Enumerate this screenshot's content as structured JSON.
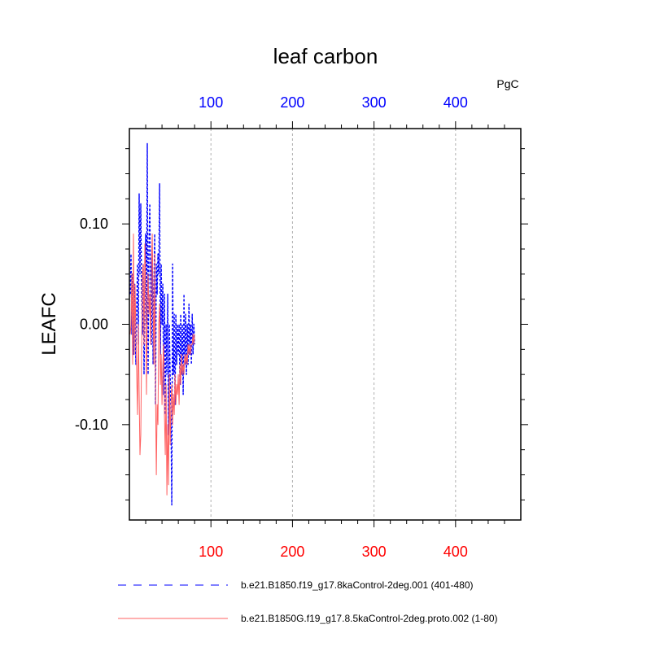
{
  "chart_data": {
    "type": "line",
    "title": "leaf carbon",
    "units": "PgC",
    "ylabel": "LEAFC",
    "xlabel": "",
    "xlim": [
      0,
      480
    ],
    "ylim": [
      -0.195,
      0.195
    ],
    "top_axis": {
      "ticks": [
        100,
        200,
        300,
        400
      ],
      "labels": [
        "100",
        "200",
        "300",
        "400"
      ],
      "color": "#0000ff"
    },
    "bottom_axis": {
      "ticks": [
        100,
        200,
        300,
        400
      ],
      "labels": [
        "100",
        "200",
        "300",
        "400"
      ],
      "color": "#ff0000"
    },
    "y_ticks": [
      0.1,
      0.0,
      -0.1
    ],
    "y_tick_labels": [
      "0.10",
      "0.00",
      "-0.10"
    ],
    "grid": "dashed vertical lines at major x ticks",
    "series": [
      {
        "name": "b.e21.B1850.f19_g17.8kaControl-2deg.001 (401-480)",
        "color": "#0000ff",
        "style": "dashed",
        "x": [
          1,
          2,
          3,
          4,
          5,
          6,
          7,
          8,
          9,
          10,
          11,
          12,
          13,
          14,
          15,
          16,
          17,
          18,
          19,
          20,
          21,
          22,
          23,
          24,
          25,
          26,
          27,
          28,
          29,
          30,
          31,
          32,
          33,
          34,
          35,
          36,
          37,
          38,
          39,
          40,
          41,
          42,
          43,
          44,
          45,
          46,
          47,
          48,
          49,
          50,
          51,
          52,
          53,
          54,
          55,
          56,
          57,
          58,
          59,
          60,
          61,
          62,
          63,
          64,
          65,
          66,
          67,
          68,
          69,
          70,
          71,
          72,
          73,
          74,
          75,
          76,
          77,
          78,
          79,
          80
        ],
        "values": [
          0.03,
          0.07,
          -0.01,
          0.05,
          -0.03,
          0.04,
          0.0,
          -0.04,
          0.02,
          0.06,
          -0.02,
          0.13,
          0.05,
          0.12,
          0.03,
          -0.01,
          0.06,
          -0.05,
          0.02,
          0.09,
          0.0,
          0.18,
          -0.05,
          0.08,
          0.12,
          0.03,
          -0.02,
          0.07,
          -0.04,
          0.03,
          0.09,
          -0.08,
          0.06,
          0.03,
          0.07,
          0.05,
          0.14,
          -0.03,
          0.06,
          0.0,
          0.04,
          -0.07,
          0.03,
          -0.09,
          0.0,
          -0.05,
          0.03,
          -0.11,
          0.0,
          -0.05,
          -0.09,
          -0.18,
          0.06,
          -0.05,
          0.01,
          -0.08,
          0.01,
          -0.04,
          0.0,
          -0.03,
          0.0,
          -0.06,
          0.01,
          -0.05,
          0.0,
          -0.07,
          0.03,
          -0.04,
          0.01,
          -0.05,
          0.0,
          -0.04,
          0.02,
          -0.03,
          0.0,
          -0.04,
          0.01,
          -0.03,
          0.0,
          -0.02
        ]
      },
      {
        "name": "b.e21.B1850G.f19_g17.8.5kaControl-2deg.proto.002 (1-80)",
        "color": "#ff6060",
        "style": "solid",
        "x": [
          1,
          2,
          3,
          4,
          5,
          6,
          7,
          8,
          9,
          10,
          11,
          12,
          13,
          14,
          15,
          16,
          17,
          18,
          19,
          20,
          21,
          22,
          23,
          24,
          25,
          26,
          27,
          28,
          29,
          30,
          31,
          32,
          33,
          34,
          35,
          36,
          37,
          38,
          39,
          40,
          41,
          42,
          43,
          44,
          45,
          46,
          47,
          48,
          49,
          50,
          51,
          52,
          53,
          54,
          55,
          56,
          57,
          58,
          59,
          60,
          61,
          62,
          63,
          64,
          65,
          66,
          67,
          68,
          69,
          70,
          71,
          72,
          73,
          74,
          75,
          76,
          77,
          78,
          79,
          80
        ],
        "values": [
          -0.01,
          0.0,
          0.05,
          -0.04,
          0.09,
          -0.03,
          0.04,
          -0.01,
          -0.05,
          -0.09,
          0.0,
          -0.07,
          -0.13,
          -0.11,
          -0.03,
          0.05,
          0.06,
          -0.02,
          0.08,
          0.04,
          -0.07,
          0.02,
          0.05,
          0.01,
          0.03,
          -0.02,
          0.06,
          0.09,
          0.02,
          -0.04,
          0.07,
          -0.06,
          -0.15,
          -0.08,
          -0.1,
          0.0,
          0.02,
          -0.06,
          -0.03,
          -0.08,
          -0.04,
          -0.02,
          -0.09,
          -0.13,
          -0.06,
          -0.17,
          -0.1,
          -0.16,
          -0.05,
          -0.12,
          -0.08,
          -0.06,
          -0.1,
          -0.07,
          -0.09,
          -0.05,
          -0.08,
          -0.06,
          -0.07,
          -0.05,
          -0.08,
          -0.04,
          -0.06,
          -0.03,
          -0.05,
          -0.04,
          -0.05,
          -0.03,
          -0.04,
          -0.03,
          -0.04,
          -0.02,
          -0.03,
          -0.02,
          -0.03,
          -0.02,
          -0.02,
          -0.01,
          -0.02,
          -0.01
        ]
      }
    ],
    "legend": [
      {
        "label": "b.e21.B1850.f19_g17.8kaControl-2deg.001 (401-480)",
        "color": "#0000ff",
        "style": "dashed"
      },
      {
        "label": "b.e21.B1850G.f19_g17.8.5kaControl-2deg.proto.002 (1-80)",
        "color": "#ff6060",
        "style": "solid"
      }
    ]
  }
}
